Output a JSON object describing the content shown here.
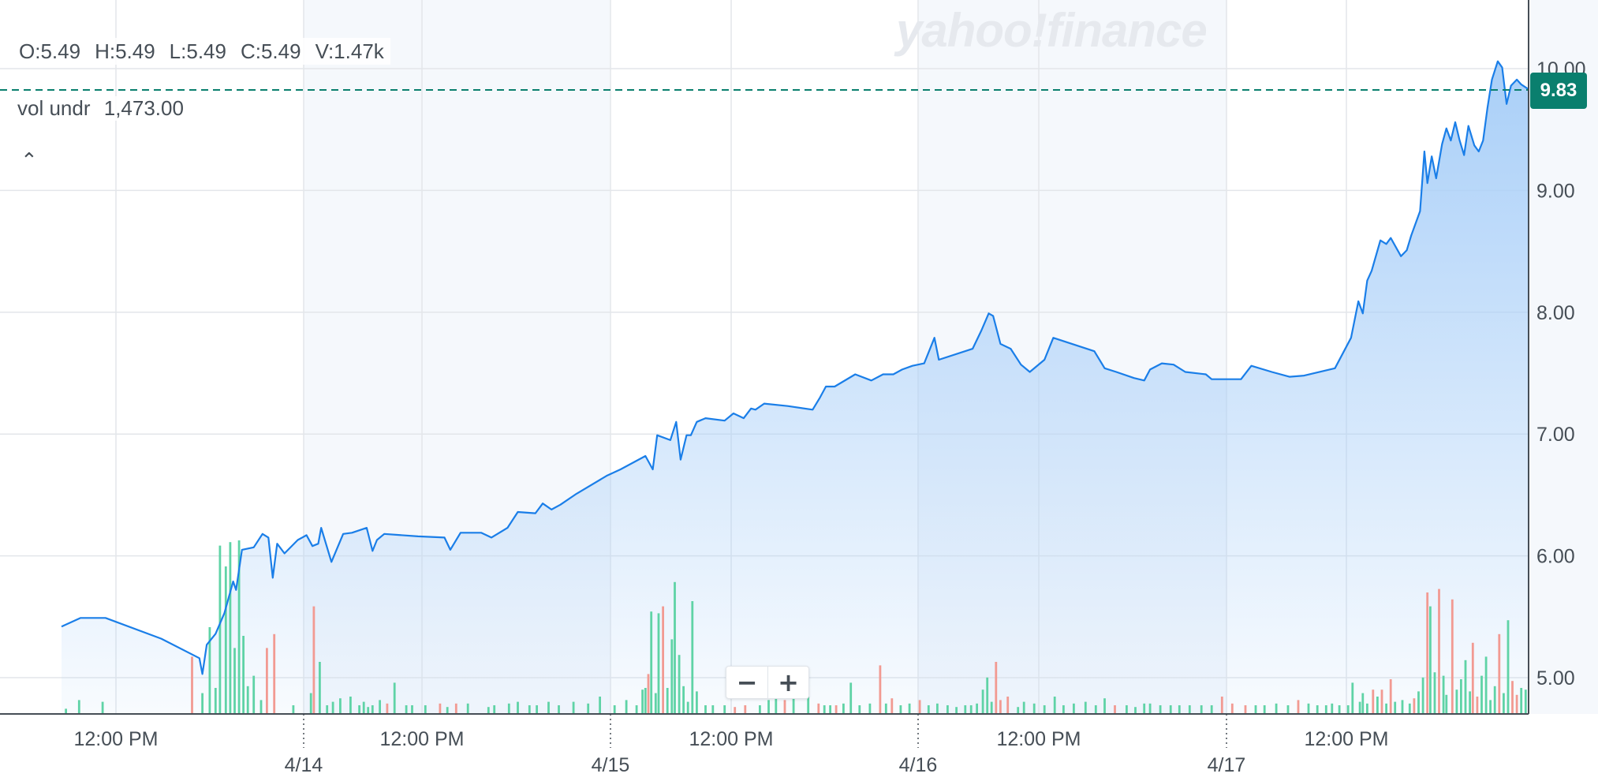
{
  "ohlc": {
    "open": "O:5.49",
    "high": "H:5.49",
    "low": "L:5.49",
    "close": "C:5.49",
    "volume": "V:1.47k"
  },
  "volume_indicator": {
    "label": "vol undr",
    "value": "1,473.00"
  },
  "watermark": "yahoo!finance",
  "current_price": "9.83",
  "zoom": {
    "minus": "−",
    "plus": "+"
  },
  "colors": {
    "line": "#1a7ee8",
    "area": "#a9cff8",
    "vol_up": "#5fd3a6",
    "vol_down": "#f29a92",
    "price_badge": "#0a7f6e",
    "session_shade": "#f5f8fc"
  },
  "chart_data": {
    "type": "area",
    "y_ticks": [
      "5.00",
      "6.00",
      "7.00",
      "8.00",
      "9.00",
      "10.00"
    ],
    "ylim": [
      4.7,
      10.7
    ],
    "x_tick_labels": [
      "12:00 PM",
      "4/14",
      "12:00 PM",
      "4/15",
      "12:00 PM",
      "4/16",
      "12:00 PM",
      "4/17",
      "12:00 PM"
    ],
    "grid": true,
    "price_series": [
      [
        0.0,
        5.42
      ],
      [
        0.013,
        5.49
      ],
      [
        0.03,
        5.49
      ],
      [
        0.068,
        5.32
      ],
      [
        0.094,
        5.16
      ],
      [
        0.096,
        5.03
      ],
      [
        0.099,
        5.27
      ],
      [
        0.105,
        5.36
      ],
      [
        0.111,
        5.53
      ],
      [
        0.117,
        5.79
      ],
      [
        0.119,
        5.72
      ],
      [
        0.123,
        6.05
      ],
      [
        0.131,
        6.07
      ],
      [
        0.137,
        6.18
      ],
      [
        0.141,
        6.15
      ],
      [
        0.144,
        5.82
      ],
      [
        0.147,
        6.1
      ],
      [
        0.152,
        6.02
      ],
      [
        0.161,
        6.13
      ],
      [
        0.167,
        6.17
      ],
      [
        0.171,
        6.08
      ],
      [
        0.175,
        6.1
      ],
      [
        0.177,
        6.23
      ],
      [
        0.184,
        5.95
      ],
      [
        0.192,
        6.18
      ],
      [
        0.198,
        6.19
      ],
      [
        0.208,
        6.23
      ],
      [
        0.212,
        6.04
      ],
      [
        0.215,
        6.13
      ],
      [
        0.22,
        6.18
      ],
      [
        0.243,
        6.16
      ],
      [
        0.261,
        6.15
      ],
      [
        0.265,
        6.05
      ],
      [
        0.272,
        6.19
      ],
      [
        0.286,
        6.19
      ],
      [
        0.293,
        6.15
      ],
      [
        0.304,
        6.23
      ],
      [
        0.311,
        6.36
      ],
      [
        0.323,
        6.35
      ],
      [
        0.328,
        6.43
      ],
      [
        0.334,
        6.38
      ],
      [
        0.34,
        6.42
      ],
      [
        0.351,
        6.51
      ],
      [
        0.372,
        6.66
      ],
      [
        0.381,
        6.71
      ],
      [
        0.398,
        6.82
      ],
      [
        0.403,
        6.71
      ],
      [
        0.406,
        6.99
      ],
      [
        0.415,
        6.95
      ],
      [
        0.419,
        7.1
      ],
      [
        0.422,
        6.79
      ],
      [
        0.426,
        6.99
      ],
      [
        0.429,
        6.99
      ],
      [
        0.433,
        7.1
      ],
      [
        0.439,
        7.13
      ],
      [
        0.452,
        7.11
      ],
      [
        0.458,
        7.17
      ],
      [
        0.465,
        7.13
      ],
      [
        0.47,
        7.21
      ],
      [
        0.473,
        7.2
      ],
      [
        0.479,
        7.25
      ],
      [
        0.495,
        7.23
      ],
      [
        0.512,
        7.2
      ],
      [
        0.517,
        7.3
      ],
      [
        0.521,
        7.39
      ],
      [
        0.527,
        7.39
      ],
      [
        0.541,
        7.49
      ],
      [
        0.552,
        7.44
      ],
      [
        0.56,
        7.49
      ],
      [
        0.567,
        7.49
      ],
      [
        0.573,
        7.53
      ],
      [
        0.58,
        7.56
      ],
      [
        0.588,
        7.58
      ],
      [
        0.595,
        7.79
      ],
      [
        0.598,
        7.61
      ],
      [
        0.621,
        7.7
      ],
      [
        0.627,
        7.85
      ],
      [
        0.632,
        7.99
      ],
      [
        0.635,
        7.97
      ],
      [
        0.64,
        7.74
      ],
      [
        0.647,
        7.7
      ],
      [
        0.654,
        7.57
      ],
      [
        0.66,
        7.51
      ],
      [
        0.67,
        7.61
      ],
      [
        0.676,
        7.79
      ],
      [
        0.704,
        7.68
      ],
      [
        0.711,
        7.54
      ],
      [
        0.719,
        7.51
      ],
      [
        0.731,
        7.46
      ],
      [
        0.738,
        7.44
      ],
      [
        0.742,
        7.53
      ],
      [
        0.75,
        7.58
      ],
      [
        0.758,
        7.57
      ],
      [
        0.766,
        7.51
      ],
      [
        0.78,
        7.49
      ],
      [
        0.784,
        7.45
      ],
      [
        0.804,
        7.45
      ],
      [
        0.811,
        7.56
      ],
      [
        0.825,
        7.51
      ],
      [
        0.837,
        7.47
      ],
      [
        0.847,
        7.48
      ],
      [
        0.868,
        7.54
      ],
      [
        0.879,
        7.79
      ],
      [
        0.884,
        8.09
      ],
      [
        0.887,
        7.99
      ],
      [
        0.89,
        8.26
      ],
      [
        0.893,
        8.34
      ],
      [
        0.899,
        8.59
      ],
      [
        0.903,
        8.56
      ],
      [
        0.906,
        8.61
      ],
      [
        0.913,
        8.46
      ],
      [
        0.917,
        8.51
      ],
      [
        0.92,
        8.63
      ],
      [
        0.926,
        8.83
      ],
      [
        0.929,
        9.32
      ],
      [
        0.931,
        9.06
      ],
      [
        0.934,
        9.28
      ],
      [
        0.937,
        9.1
      ],
      [
        0.941,
        9.38
      ],
      [
        0.944,
        9.51
      ],
      [
        0.947,
        9.41
      ],
      [
        0.95,
        9.56
      ],
      [
        0.953,
        9.41
      ],
      [
        0.956,
        9.29
      ],
      [
        0.959,
        9.53
      ],
      [
        0.963,
        9.37
      ],
      [
        0.966,
        9.32
      ],
      [
        0.969,
        9.41
      ],
      [
        0.972,
        9.68
      ],
      [
        0.975,
        9.91
      ],
      [
        0.979,
        10.06
      ],
      [
        0.982,
        10.01
      ],
      [
        0.985,
        9.71
      ],
      [
        0.988,
        9.86
      ],
      [
        0.992,
        9.91
      ],
      [
        0.995,
        9.87
      ],
      [
        1.0,
        9.83
      ]
    ],
    "volume_series": [
      [
        0.003,
        0.03,
        "up"
      ],
      [
        0.012,
        0.08,
        "up"
      ],
      [
        0.028,
        0.07,
        "up"
      ],
      [
        0.089,
        0.33,
        "down"
      ],
      [
        0.096,
        0.12,
        "up"
      ],
      [
        0.101,
        0.5,
        "up"
      ],
      [
        0.105,
        0.15,
        "up"
      ],
      [
        0.108,
        0.97,
        "up"
      ],
      [
        0.112,
        0.85,
        "up"
      ],
      [
        0.115,
        0.99,
        "up"
      ],
      [
        0.118,
        0.38,
        "up"
      ],
      [
        0.121,
        1.0,
        "up"
      ],
      [
        0.124,
        0.45,
        "up"
      ],
      [
        0.127,
        0.16,
        "up"
      ],
      [
        0.131,
        0.22,
        "up"
      ],
      [
        0.136,
        0.08,
        "up"
      ],
      [
        0.14,
        0.38,
        "down"
      ],
      [
        0.145,
        0.46,
        "down"
      ],
      [
        0.158,
        0.05,
        "up"
      ],
      [
        0.17,
        0.12,
        "up"
      ],
      [
        0.172,
        0.62,
        "down"
      ],
      [
        0.176,
        0.3,
        "up"
      ],
      [
        0.181,
        0.05,
        "up"
      ],
      [
        0.185,
        0.07,
        "up"
      ],
      [
        0.19,
        0.09,
        "up"
      ],
      [
        0.197,
        0.1,
        "up"
      ],
      [
        0.203,
        0.05,
        "up"
      ],
      [
        0.206,
        0.07,
        "up"
      ],
      [
        0.209,
        0.04,
        "up"
      ],
      [
        0.212,
        0.05,
        "up"
      ],
      [
        0.217,
        0.08,
        "up"
      ],
      [
        0.222,
        0.06,
        "down"
      ],
      [
        0.227,
        0.18,
        "up"
      ],
      [
        0.235,
        0.05,
        "up"
      ],
      [
        0.239,
        0.05,
        "up"
      ],
      [
        0.248,
        0.05,
        "up"
      ],
      [
        0.258,
        0.06,
        "down"
      ],
      [
        0.263,
        0.04,
        "up"
      ],
      [
        0.269,
        0.06,
        "down"
      ],
      [
        0.277,
        0.06,
        "up"
      ],
      [
        0.291,
        0.04,
        "up"
      ],
      [
        0.295,
        0.05,
        "up"
      ],
      [
        0.305,
        0.06,
        "up"
      ],
      [
        0.311,
        0.07,
        "up"
      ],
      [
        0.319,
        0.05,
        "up"
      ],
      [
        0.324,
        0.05,
        "up"
      ],
      [
        0.332,
        0.07,
        "up"
      ],
      [
        0.339,
        0.05,
        "up"
      ],
      [
        0.349,
        0.07,
        "up"
      ],
      [
        0.359,
        0.06,
        "up"
      ],
      [
        0.367,
        0.1,
        "up"
      ],
      [
        0.377,
        0.05,
        "up"
      ],
      [
        0.385,
        0.08,
        "up"
      ],
      [
        0.392,
        0.05,
        "up"
      ],
      [
        0.396,
        0.14,
        "up"
      ],
      [
        0.398,
        0.15,
        "up"
      ],
      [
        0.4,
        0.23,
        "down"
      ],
      [
        0.402,
        0.59,
        "up"
      ],
      [
        0.405,
        0.12,
        "up"
      ],
      [
        0.407,
        0.58,
        "up"
      ],
      [
        0.41,
        0.62,
        "down"
      ],
      [
        0.413,
        0.15,
        "up"
      ],
      [
        0.416,
        0.43,
        "up"
      ],
      [
        0.418,
        0.76,
        "up"
      ],
      [
        0.421,
        0.34,
        "up"
      ],
      [
        0.424,
        0.16,
        "up"
      ],
      [
        0.427,
        0.07,
        "up"
      ],
      [
        0.43,
        0.65,
        "up"
      ],
      [
        0.433,
        0.13,
        "up"
      ],
      [
        0.439,
        0.05,
        "up"
      ],
      [
        0.444,
        0.05,
        "up"
      ],
      [
        0.452,
        0.05,
        "up"
      ],
      [
        0.459,
        0.04,
        "down"
      ],
      [
        0.466,
        0.05,
        "down"
      ],
      [
        0.476,
        0.05,
        "up"
      ],
      [
        0.482,
        0.08,
        "up"
      ],
      [
        0.487,
        0.16,
        "up"
      ],
      [
        0.493,
        0.08,
        "down"
      ],
      [
        0.499,
        0.09,
        "up"
      ],
      [
        0.509,
        0.1,
        "up"
      ],
      [
        0.516,
        0.06,
        "down"
      ],
      [
        0.52,
        0.05,
        "up"
      ],
      [
        0.524,
        0.05,
        "up"
      ],
      [
        0.528,
        0.05,
        "down"
      ],
      [
        0.533,
        0.06,
        "up"
      ],
      [
        0.538,
        0.18,
        "up"
      ],
      [
        0.544,
        0.05,
        "up"
      ],
      [
        0.551,
        0.06,
        "up"
      ],
      [
        0.558,
        0.28,
        "down"
      ],
      [
        0.562,
        0.06,
        "up"
      ],
      [
        0.566,
        0.09,
        "down"
      ],
      [
        0.572,
        0.05,
        "up"
      ],
      [
        0.578,
        0.06,
        "up"
      ],
      [
        0.585,
        0.08,
        "down"
      ],
      [
        0.591,
        0.05,
        "up"
      ],
      [
        0.597,
        0.06,
        "up"
      ],
      [
        0.604,
        0.05,
        "up"
      ],
      [
        0.61,
        0.04,
        "up"
      ],
      [
        0.616,
        0.05,
        "up"
      ],
      [
        0.62,
        0.05,
        "up"
      ],
      [
        0.624,
        0.06,
        "up"
      ],
      [
        0.628,
        0.14,
        "up"
      ],
      [
        0.631,
        0.21,
        "up"
      ],
      [
        0.634,
        0.07,
        "up"
      ],
      [
        0.637,
        0.3,
        "down"
      ],
      [
        0.64,
        0.08,
        "down"
      ],
      [
        0.645,
        0.1,
        "down"
      ],
      [
        0.652,
        0.04,
        "up"
      ],
      [
        0.656,
        0.07,
        "up"
      ],
      [
        0.663,
        0.06,
        "up"
      ],
      [
        0.67,
        0.05,
        "up"
      ],
      [
        0.677,
        0.1,
        "up"
      ],
      [
        0.683,
        0.05,
        "up"
      ],
      [
        0.69,
        0.06,
        "up"
      ],
      [
        0.698,
        0.07,
        "up"
      ],
      [
        0.705,
        0.05,
        "up"
      ],
      [
        0.711,
        0.09,
        "up"
      ],
      [
        0.718,
        0.05,
        "down"
      ],
      [
        0.726,
        0.05,
        "up"
      ],
      [
        0.732,
        0.04,
        "up"
      ],
      [
        0.738,
        0.06,
        "up"
      ],
      [
        0.742,
        0.06,
        "up"
      ],
      [
        0.749,
        0.05,
        "up"
      ],
      [
        0.756,
        0.05,
        "up"
      ],
      [
        0.762,
        0.05,
        "up"
      ],
      [
        0.769,
        0.05,
        "up"
      ],
      [
        0.777,
        0.05,
        "up"
      ],
      [
        0.784,
        0.05,
        "up"
      ],
      [
        0.791,
        0.1,
        "down"
      ],
      [
        0.798,
        0.06,
        "down"
      ],
      [
        0.807,
        0.05,
        "down"
      ],
      [
        0.814,
        0.05,
        "up"
      ],
      [
        0.82,
        0.05,
        "up"
      ],
      [
        0.828,
        0.06,
        "up"
      ],
      [
        0.836,
        0.05,
        "up"
      ],
      [
        0.843,
        0.08,
        "down"
      ],
      [
        0.85,
        0.06,
        "up"
      ],
      [
        0.856,
        0.05,
        "up"
      ],
      [
        0.862,
        0.05,
        "up"
      ],
      [
        0.866,
        0.06,
        "up"
      ],
      [
        0.871,
        0.05,
        "up"
      ],
      [
        0.877,
        0.05,
        "up"
      ],
      [
        0.88,
        0.18,
        "up"
      ],
      [
        0.885,
        0.07,
        "up"
      ],
      [
        0.887,
        0.12,
        "up"
      ],
      [
        0.89,
        0.06,
        "up"
      ],
      [
        0.894,
        0.14,
        "down"
      ],
      [
        0.897,
        0.1,
        "up"
      ],
      [
        0.9,
        0.14,
        "down"
      ],
      [
        0.903,
        0.06,
        "up"
      ],
      [
        0.906,
        0.2,
        "down"
      ],
      [
        0.909,
        0.07,
        "up"
      ],
      [
        0.914,
        0.08,
        "up"
      ],
      [
        0.919,
        0.06,
        "up"
      ],
      [
        0.922,
        0.09,
        "down"
      ],
      [
        0.925,
        0.13,
        "up"
      ],
      [
        0.928,
        0.21,
        "up"
      ],
      [
        0.931,
        0.7,
        "down"
      ],
      [
        0.933,
        0.62,
        "up"
      ],
      [
        0.936,
        0.24,
        "up"
      ],
      [
        0.939,
        0.72,
        "down"
      ],
      [
        0.942,
        0.22,
        "up"
      ],
      [
        0.944,
        0.11,
        "up"
      ],
      [
        0.948,
        0.66,
        "down"
      ],
      [
        0.951,
        0.14,
        "up"
      ],
      [
        0.954,
        0.2,
        "up"
      ],
      [
        0.957,
        0.31,
        "up"
      ],
      [
        0.96,
        0.13,
        "up"
      ],
      [
        0.962,
        0.41,
        "down"
      ],
      [
        0.965,
        0.1,
        "down"
      ],
      [
        0.968,
        0.22,
        "up"
      ],
      [
        0.971,
        0.33,
        "up"
      ],
      [
        0.974,
        0.08,
        "up"
      ],
      [
        0.977,
        0.16,
        "up"
      ],
      [
        0.98,
        0.46,
        "down"
      ],
      [
        0.983,
        0.12,
        "up"
      ],
      [
        0.986,
        0.54,
        "up"
      ],
      [
        0.989,
        0.19,
        "down"
      ],
      [
        0.992,
        0.11,
        "down"
      ],
      [
        0.995,
        0.15,
        "up"
      ],
      [
        0.998,
        0.14,
        "up"
      ]
    ]
  }
}
